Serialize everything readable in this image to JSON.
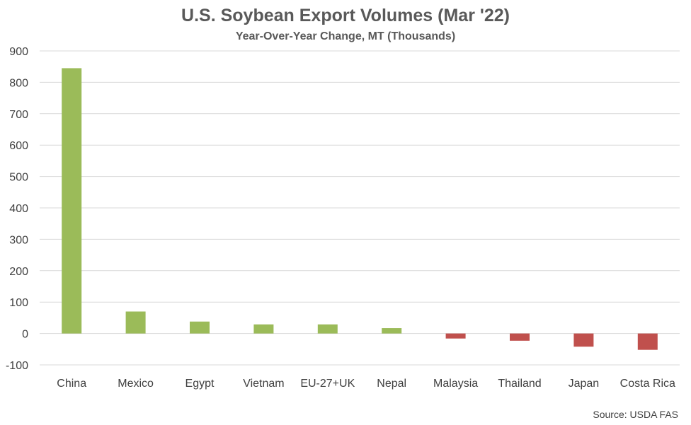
{
  "chart_data": {
    "type": "bar",
    "title": "U.S. Soybean Export Volumes (Mar '22)",
    "subtitle": "Year-Over-Year Change, MT (Thousands)",
    "categories": [
      "China",
      "Mexico",
      "Egypt",
      "Vietnam",
      "EU-27+UK",
      "Nepal",
      "Malaysia",
      "Thailand",
      "Japan",
      "Costa Rica"
    ],
    "values": [
      845,
      70,
      38,
      29,
      29,
      17,
      -16,
      -23,
      -42,
      -52
    ],
    "ylim": [
      -100,
      900
    ],
    "yticks": [
      "-100",
      "0",
      "100",
      "200",
      "300",
      "400",
      "500",
      "600",
      "700",
      "800",
      "900"
    ],
    "grid": true,
    "colors": {
      "positive": "#9BBB59",
      "negative": "#C0504D"
    },
    "source": "Source: USDA FAS"
  }
}
